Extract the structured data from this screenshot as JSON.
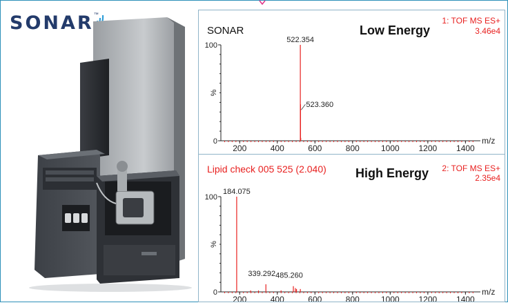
{
  "logo": {
    "text": "SONAR"
  },
  "chart_data": [
    {
      "type": "bar",
      "title": "Low Energy",
      "header_left": "SONAR",
      "function_label": "1: TOF MS ES+",
      "intensity": "3.46e4",
      "xlabel": "m/z",
      "ylabel": "%",
      "xlim": [
        100,
        1450
      ],
      "ylim": [
        0,
        100
      ],
      "xticks": [
        200,
        400,
        600,
        800,
        1000,
        1200,
        1400
      ],
      "yticks": [
        0,
        100
      ],
      "peaks": [
        {
          "mz": 522.354,
          "intensity": 100,
          "label": "522.354"
        },
        {
          "mz": 523.36,
          "intensity": 38,
          "label": "523.360"
        },
        {
          "mz": 524.4,
          "intensity": 3
        }
      ],
      "line_color": "#e8201f"
    },
    {
      "type": "bar",
      "title": "High Energy",
      "header_left": "Lipid check 005 525 (2.040)",
      "function_label": "2: TOF MS ES+",
      "intensity": "2.35e4",
      "xlabel": "m/z",
      "ylabel": "%",
      "xlim": [
        100,
        1450
      ],
      "ylim": [
        0,
        100
      ],
      "xticks": [
        200,
        400,
        600,
        800,
        1000,
        1200,
        1400
      ],
      "yticks": [
        0,
        100
      ],
      "peaks": [
        {
          "mz": 184.075,
          "intensity": 100,
          "label": "184.075"
        },
        {
          "mz": 339.292,
          "intensity": 8,
          "label": "339.292"
        },
        {
          "mz": 485.26,
          "intensity": 6,
          "label": "485.260"
        },
        {
          "mz": 496,
          "intensity": 4
        },
        {
          "mz": 502,
          "intensity": 3
        },
        {
          "mz": 522.4,
          "intensity": 3
        },
        {
          "mz": 258,
          "intensity": 1.5
        },
        {
          "mz": 300,
          "intensity": 1.5
        },
        {
          "mz": 420,
          "intensity": 1.5
        }
      ],
      "line_color": "#e8201f"
    }
  ]
}
